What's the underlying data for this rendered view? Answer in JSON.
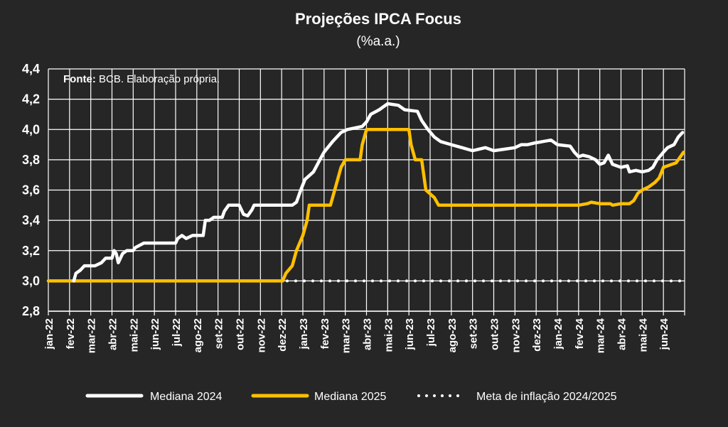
{
  "chart_data": {
    "type": "line",
    "title": "Projeções IPCA Focus",
    "subtitle": "(%a.a.)",
    "source_label": "Fonte:",
    "source_text": " BCB. Elaboração própria.",
    "ylim": [
      2.8,
      4.4
    ],
    "yticks": [
      "2,8",
      "3,0",
      "3,2",
      "3,4",
      "3,6",
      "3,8",
      "4,0",
      "4,2",
      "4,4"
    ],
    "ytick_values": [
      2.8,
      3.0,
      3.2,
      3.4,
      3.6,
      3.8,
      4.0,
      4.2,
      4.4
    ],
    "x_categories": [
      "jan-22",
      "fev-22",
      "mar-22",
      "abr-22",
      "mai-22",
      "jun-22",
      "jul-22",
      "ago-22",
      "set-22",
      "out-22",
      "nov-22",
      "dez-22",
      "jan-23",
      "fev-23",
      "mar-23",
      "abr-23",
      "mai-23",
      "jun-23",
      "jul-23",
      "ago-23",
      "set-23",
      "out-23",
      "nov-23",
      "dez-23",
      "jan-24",
      "fev-24",
      "mar-24",
      "abr-24",
      "mai-24",
      "jun-24"
    ],
    "grid": true,
    "legend_position": "bottom",
    "colors": {
      "background": "#262626",
      "grid": "#ffffff",
      "s2024": "#ffffff",
      "s2025": "#ffc000",
      "meta": "#ffffff"
    },
    "series": [
      {
        "name": "Mediana 2024",
        "style": "solid",
        "color": "#ffffff",
        "points": [
          [
            1.2,
            3.0
          ],
          [
            1.3,
            3.05
          ],
          [
            1.5,
            3.07
          ],
          [
            1.7,
            3.1
          ],
          [
            2.2,
            3.1
          ],
          [
            2.5,
            3.12
          ],
          [
            2.7,
            3.15
          ],
          [
            3.0,
            3.15
          ],
          [
            3.1,
            3.2
          ],
          [
            3.2,
            3.18
          ],
          [
            3.3,
            3.12
          ],
          [
            3.5,
            3.18
          ],
          [
            3.7,
            3.2
          ],
          [
            4.0,
            3.2
          ],
          [
            4.1,
            3.22
          ],
          [
            4.5,
            3.25
          ],
          [
            4.8,
            3.25
          ],
          [
            5.5,
            3.25
          ],
          [
            6.0,
            3.25
          ],
          [
            6.1,
            3.28
          ],
          [
            6.3,
            3.3
          ],
          [
            6.5,
            3.28
          ],
          [
            6.8,
            3.3
          ],
          [
            7.3,
            3.3
          ],
          [
            7.4,
            3.4
          ],
          [
            7.6,
            3.4
          ],
          [
            7.8,
            3.42
          ],
          [
            8.2,
            3.42
          ],
          [
            8.3,
            3.46
          ],
          [
            8.5,
            3.5
          ],
          [
            9.0,
            3.5
          ],
          [
            9.2,
            3.44
          ],
          [
            9.4,
            3.43
          ],
          [
            9.6,
            3.47
          ],
          [
            9.7,
            3.5
          ],
          [
            11.0,
            3.5
          ],
          [
            11.5,
            3.5
          ],
          [
            11.7,
            3.52
          ],
          [
            11.9,
            3.6
          ],
          [
            12.1,
            3.67
          ],
          [
            12.5,
            3.72
          ],
          [
            12.8,
            3.8
          ],
          [
            13.0,
            3.85
          ],
          [
            13.4,
            3.92
          ],
          [
            13.8,
            3.98
          ],
          [
            14.1,
            4.0
          ],
          [
            14.8,
            4.02
          ],
          [
            15.0,
            4.05
          ],
          [
            15.2,
            4.1
          ],
          [
            15.6,
            4.13
          ],
          [
            16.0,
            4.17
          ],
          [
            16.5,
            4.16
          ],
          [
            16.8,
            4.13
          ],
          [
            17.4,
            4.12
          ],
          [
            17.6,
            4.06
          ],
          [
            17.9,
            4.0
          ],
          [
            18.2,
            3.95
          ],
          [
            18.5,
            3.92
          ],
          [
            19.0,
            3.9
          ],
          [
            19.5,
            3.88
          ],
          [
            20.0,
            3.86
          ],
          [
            20.3,
            3.87
          ],
          [
            20.6,
            3.88
          ],
          [
            21.0,
            3.86
          ],
          [
            21.5,
            3.87
          ],
          [
            22.0,
            3.88
          ],
          [
            22.3,
            3.9
          ],
          [
            22.6,
            3.9
          ],
          [
            22.9,
            3.91
          ],
          [
            23.3,
            3.92
          ],
          [
            23.7,
            3.93
          ],
          [
            24.0,
            3.9
          ],
          [
            24.6,
            3.89
          ],
          [
            24.8,
            3.85
          ],
          [
            25.0,
            3.82
          ],
          [
            25.2,
            3.83
          ],
          [
            25.5,
            3.82
          ],
          [
            25.8,
            3.8
          ],
          [
            26.0,
            3.77
          ],
          [
            26.2,
            3.78
          ],
          [
            26.4,
            3.83
          ],
          [
            26.6,
            3.77
          ],
          [
            26.8,
            3.76
          ],
          [
            27.0,
            3.75
          ],
          [
            27.3,
            3.76
          ],
          [
            27.4,
            3.72
          ],
          [
            27.7,
            3.73
          ],
          [
            28.0,
            3.72
          ],
          [
            28.3,
            3.73
          ],
          [
            28.5,
            3.75
          ],
          [
            28.7,
            3.8
          ],
          [
            29.0,
            3.85
          ],
          [
            29.2,
            3.88
          ],
          [
            29.5,
            3.9
          ],
          [
            29.7,
            3.95
          ],
          [
            29.9,
            3.98
          ]
        ]
      },
      {
        "name": "Mediana 2025",
        "style": "solid",
        "color": "#ffc000",
        "points": [
          [
            0.0,
            3.0
          ],
          [
            11.05,
            3.0
          ],
          [
            11.2,
            3.05
          ],
          [
            11.5,
            3.1
          ],
          [
            11.7,
            3.2
          ],
          [
            12.0,
            3.3
          ],
          [
            12.2,
            3.4
          ],
          [
            12.3,
            3.5
          ],
          [
            13.3,
            3.5
          ],
          [
            13.5,
            3.6
          ],
          [
            13.8,
            3.75
          ],
          [
            14.0,
            3.8
          ],
          [
            14.7,
            3.8
          ],
          [
            14.8,
            3.9
          ],
          [
            15.0,
            4.0
          ],
          [
            17.0,
            4.0
          ],
          [
            17.1,
            3.9
          ],
          [
            17.3,
            3.8
          ],
          [
            17.6,
            3.8
          ],
          [
            17.8,
            3.6
          ],
          [
            18.2,
            3.55
          ],
          [
            18.4,
            3.5
          ],
          [
            19.0,
            3.5
          ],
          [
            25.0,
            3.5
          ],
          [
            25.4,
            3.51
          ],
          [
            25.6,
            3.52
          ],
          [
            26.0,
            3.51
          ],
          [
            26.5,
            3.51
          ],
          [
            26.6,
            3.5
          ],
          [
            27.0,
            3.51
          ],
          [
            27.4,
            3.51
          ],
          [
            27.6,
            3.53
          ],
          [
            27.8,
            3.58
          ],
          [
            28.0,
            3.6
          ],
          [
            28.3,
            3.62
          ],
          [
            28.6,
            3.65
          ],
          [
            28.8,
            3.68
          ],
          [
            29.0,
            3.75
          ],
          [
            29.4,
            3.77
          ],
          [
            29.6,
            3.78
          ],
          [
            29.8,
            3.82
          ],
          [
            29.95,
            3.85
          ]
        ]
      },
      {
        "name": "Meta de inflação 2024/2025",
        "style": "dotted",
        "color": "#ffffff",
        "points": [
          [
            0.0,
            3.0
          ],
          [
            30.0,
            3.0
          ]
        ]
      }
    ]
  }
}
